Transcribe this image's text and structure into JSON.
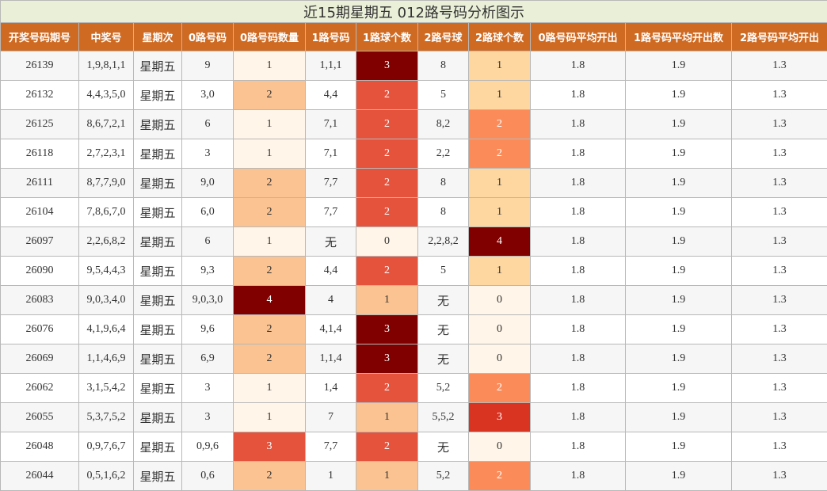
{
  "table": {
    "title": "近15期星期五 012路号码分析图示",
    "columns": [
      "开奖号码期号",
      "中奖号",
      "星期次",
      "0路号码",
      "0路号码数量",
      "1路号码",
      "1路球个数",
      "2路号球",
      "2路球个数",
      "0路号码平均开出",
      "1路号码平均开出数",
      "2路号码平均开出"
    ],
    "heat_colors": [
      {
        "column": 4,
        "colors": [
          "#fff5e8",
          "#fff5e8",
          "#fbc391",
          "#e5533d",
          "#800000"
        ]
      },
      {
        "column": 6,
        "colors": [
          "#fff5e8",
          "#fbc391",
          "#e5533d",
          "#800000"
        ]
      },
      {
        "column": 8,
        "colors": [
          "#fff5e8",
          "#fdd6a0",
          "#fb8c5a",
          "#d93322",
          "#800000"
        ]
      }
    ],
    "rows": [
      [
        "26139",
        "1,9,8,1,1",
        "星期五",
        "9",
        "1",
        "1,1,1",
        "3",
        "8",
        "1",
        "1.8",
        "1.9",
        "1.3"
      ],
      [
        "26132",
        "4,4,3,5,0",
        "星期五",
        "3,0",
        "2",
        "4,4",
        "2",
        "5",
        "1",
        "1.8",
        "1.9",
        "1.3"
      ],
      [
        "26125",
        "8,6,7,2,1",
        "星期五",
        "6",
        "1",
        "7,1",
        "2",
        "8,2",
        "2",
        "1.8",
        "1.9",
        "1.3"
      ],
      [
        "26118",
        "2,7,2,3,1",
        "星期五",
        "3",
        "1",
        "7,1",
        "2",
        "2,2",
        "2",
        "1.8",
        "1.9",
        "1.3"
      ],
      [
        "26111",
        "8,7,7,9,0",
        "星期五",
        "9,0",
        "2",
        "7,7",
        "2",
        "8",
        "1",
        "1.8",
        "1.9",
        "1.3"
      ],
      [
        "26104",
        "7,8,6,7,0",
        "星期五",
        "6,0",
        "2",
        "7,7",
        "2",
        "8",
        "1",
        "1.8",
        "1.9",
        "1.3"
      ],
      [
        "26097",
        "2,2,6,8,2",
        "星期五",
        "6",
        "1",
        "无",
        "0",
        "2,2,8,2",
        "4",
        "1.8",
        "1.9",
        "1.3"
      ],
      [
        "26090",
        "9,5,4,4,3",
        "星期五",
        "9,3",
        "2",
        "4,4",
        "2",
        "5",
        "1",
        "1.8",
        "1.9",
        "1.3"
      ],
      [
        "26083",
        "9,0,3,4,0",
        "星期五",
        "9,0,3,0",
        "4",
        "4",
        "1",
        "无",
        "0",
        "1.8",
        "1.9",
        "1.3"
      ],
      [
        "26076",
        "4,1,9,6,4",
        "星期五",
        "9,6",
        "2",
        "4,1,4",
        "3",
        "无",
        "0",
        "1.8",
        "1.9",
        "1.3"
      ],
      [
        "26069",
        "1,1,4,6,9",
        "星期五",
        "6,9",
        "2",
        "1,1,4",
        "3",
        "无",
        "0",
        "1.8",
        "1.9",
        "1.3"
      ],
      [
        "26062",
        "3,1,5,4,2",
        "星期五",
        "3",
        "1",
        "1,4",
        "2",
        "5,2",
        "2",
        "1.8",
        "1.9",
        "1.3"
      ],
      [
        "26055",
        "5,3,7,5,2",
        "星期五",
        "3",
        "1",
        "7",
        "1",
        "5,5,2",
        "3",
        "1.8",
        "1.9",
        "1.3"
      ],
      [
        "26048",
        "0,9,7,6,7",
        "星期五",
        "0,9,6",
        "3",
        "7,7",
        "2",
        "无",
        "0",
        "1.8",
        "1.9",
        "1.3"
      ],
      [
        "26044",
        "0,5,1,6,2",
        "星期五",
        "0,6",
        "2",
        "1",
        "1",
        "5,2",
        "2",
        "1.8",
        "1.9",
        "1.3"
      ]
    ]
  }
}
